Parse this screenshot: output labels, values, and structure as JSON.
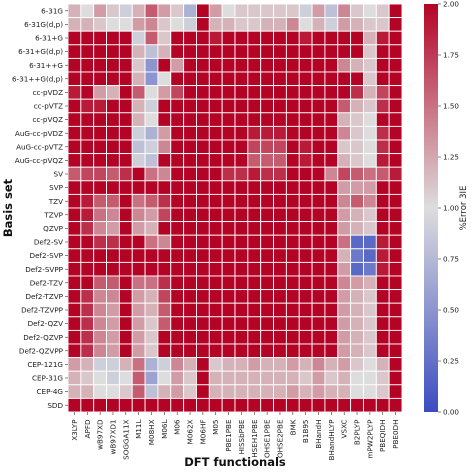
{
  "chart_data": {
    "type": "heatmap",
    "xlabel": "DFT functionals",
    "ylabel": "Basis set",
    "colorbar_label": "%Error 3IE",
    "colorbar_range": [
      0.0,
      2.0
    ],
    "colorbar_ticks": [
      "0.00",
      "0.25",
      "0.50",
      "0.75",
      "1.00",
      "1.25",
      "1.50",
      "1.75",
      "2.00"
    ],
    "colormap": {
      "low": "#3b4cc0",
      "mid": "#dddddd",
      "high": "#b40426"
    },
    "x_categories": [
      "X3LYP",
      "APFD",
      "wB97XD",
      "wB97XD1",
      "SOGGA11X",
      "M11L",
      "M08HX",
      "M06L",
      "M06",
      "M062X",
      "M06HF",
      "M05",
      "PBE1PBE",
      "HISSbPBE",
      "HSEH1PBE",
      "OHSE1PBE",
      "OHSE2PBE",
      "BMK",
      "B1B95",
      "BHandH",
      "BHandHLYP",
      "VSXC",
      "B2PLYP",
      "mPW2PLYP",
      "PBEQIDH",
      "PBE0DH"
    ],
    "y_categories": [
      "6-31G",
      "6-31G(d,p)",
      "6-31+G",
      "6-31+G(d,p)",
      "6-31++G",
      "6-31++G(d,p)",
      "cc-pVDZ",
      "cc-pVTZ",
      "cc-pVQZ",
      "AuG-cc-pVDZ",
      "AuG-cc-pVTZ",
      "AuG-cc-pVQZ",
      "SV",
      "SVP",
      "TZV",
      "TZVP",
      "QZVP",
      "Def2-SV",
      "Def2-SVP",
      "Def2-SVPP",
      "Def2-TZV",
      "Def2-TZVP",
      "Def2-TZVPP",
      "Def2-QZV",
      "Def2-QZVP",
      "Def2-QZVPP",
      "CEP-121G",
      "CEP-31G",
      "CEP-4G",
      "SDD"
    ],
    "values": [
      [
        1.2,
        1.0,
        1.3,
        1.1,
        0.9,
        1.2,
        1.6,
        1.3,
        1.1,
        0.7,
        2.0,
        1.3,
        1.0,
        1.1,
        1.1,
        1.1,
        1.1,
        1.1,
        0.9,
        1.3,
        0.8,
        1.4,
        1.1,
        1.0,
        1.1,
        2.0
      ],
      [
        1.2,
        1.2,
        1.1,
        1.0,
        1.0,
        1.3,
        1.4,
        1.1,
        1.0,
        0.9,
        2.0,
        1.2,
        1.2,
        1.1,
        1.1,
        1.2,
        1.2,
        1.4,
        1.0,
        1.2,
        0.9,
        1.3,
        1.2,
        1.1,
        1.1,
        2.0
      ],
      [
        2.0,
        2.0,
        2.0,
        2.0,
        2.0,
        0.9,
        1.6,
        1.1,
        2.0,
        2.0,
        2.0,
        1.9,
        2.0,
        2.0,
        2.0,
        2.0,
        2.0,
        2.0,
        1.9,
        2.0,
        2.0,
        2.0,
        2.0,
        1.2,
        1.9,
        2.0
      ],
      [
        2.0,
        2.0,
        2.0,
        2.0,
        2.0,
        1.2,
        0.8,
        1.2,
        2.0,
        2.0,
        2.0,
        2.0,
        2.0,
        2.0,
        2.0,
        2.0,
        2.0,
        2.0,
        2.0,
        2.0,
        2.0,
        2.0,
        2.0,
        1.1,
        2.0,
        2.0
      ],
      [
        2.0,
        2.0,
        2.0,
        2.0,
        2.0,
        1.1,
        0.5,
        2.0,
        1.3,
        2.0,
        2.0,
        2.0,
        2.0,
        2.0,
        2.0,
        2.0,
        2.0,
        2.0,
        2.0,
        2.0,
        2.0,
        1.4,
        1.2,
        1.1,
        2.0,
        2.0
      ],
      [
        2.0,
        2.0,
        2.0,
        2.0,
        2.0,
        1.2,
        0.5,
        1.0,
        2.0,
        2.0,
        2.0,
        2.0,
        2.0,
        2.0,
        2.0,
        2.0,
        2.0,
        2.0,
        2.0,
        2.0,
        2.0,
        2.0,
        2.0,
        1.1,
        2.0,
        2.0
      ],
      [
        1.9,
        2.0,
        1.3,
        1.2,
        2.0,
        1.6,
        1.0,
        1.3,
        1.7,
        2.0,
        2.0,
        2.0,
        2.0,
        2.0,
        2.0,
        2.0,
        2.0,
        2.0,
        2.0,
        2.0,
        2.0,
        2.0,
        1.8,
        1.2,
        1.7,
        2.0
      ],
      [
        2.0,
        1.9,
        1.9,
        2.0,
        2.0,
        1.2,
        0.9,
        2.0,
        2.0,
        2.0,
        2.0,
        2.0,
        2.0,
        2.0,
        2.0,
        2.0,
        2.0,
        2.0,
        2.0,
        2.0,
        2.0,
        1.6,
        1.2,
        1.1,
        1.8,
        2.0
      ],
      [
        2.0,
        2.0,
        2.0,
        2.0,
        2.0,
        1.2,
        1.0,
        2.0,
        2.0,
        2.0,
        2.0,
        2.0,
        2.0,
        2.0,
        2.0,
        2.0,
        2.0,
        2.0,
        2.0,
        2.0,
        2.0,
        1.2,
        1.1,
        1.0,
        2.0,
        2.0
      ],
      [
        2.0,
        2.0,
        2.0,
        2.0,
        2.0,
        0.9,
        0.7,
        1.3,
        2.0,
        2.0,
        2.0,
        2.0,
        2.0,
        2.0,
        1.9,
        1.9,
        1.9,
        2.0,
        2.0,
        2.0,
        2.0,
        1.4,
        1.1,
        1.0,
        1.8,
        2.0
      ],
      [
        2.0,
        2.0,
        2.0,
        2.0,
        2.0,
        0.8,
        0.9,
        1.4,
        2.0,
        2.0,
        2.0,
        2.0,
        2.0,
        2.0,
        1.7,
        1.7,
        1.7,
        2.0,
        1.9,
        2.0,
        2.0,
        1.1,
        1.1,
        1.0,
        1.8,
        2.0
      ],
      [
        2.0,
        2.0,
        2.0,
        2.0,
        2.0,
        0.9,
        0.8,
        2.0,
        2.0,
        2.0,
        2.0,
        2.0,
        2.0,
        2.0,
        1.6,
        1.6,
        1.6,
        2.0,
        1.9,
        2.0,
        2.0,
        1.2,
        1.1,
        1.0,
        1.9,
        2.0
      ],
      [
        1.6,
        1.7,
        1.7,
        1.6,
        1.8,
        2.0,
        1.5,
        1.4,
        2.0,
        2.0,
        2.0,
        2.0,
        1.8,
        1.8,
        1.9,
        1.8,
        1.8,
        2.0,
        2.0,
        2.0,
        1.4,
        1.7,
        1.6,
        1.5,
        1.6,
        1.9
      ],
      [
        2.0,
        2.0,
        2.0,
        2.0,
        2.0,
        2.0,
        2.0,
        2.0,
        2.0,
        2.0,
        2.0,
        2.0,
        2.0,
        2.0,
        2.0,
        2.0,
        2.0,
        2.0,
        2.0,
        2.0,
        2.0,
        1.3,
        1.3,
        1.3,
        2.0,
        2.0
      ],
      [
        2.0,
        1.9,
        1.6,
        1.6,
        2.0,
        1.5,
        1.6,
        1.8,
        2.0,
        2.0,
        2.0,
        2.0,
        2.0,
        2.0,
        2.0,
        2.0,
        2.0,
        2.0,
        2.0,
        2.0,
        2.0,
        1.4,
        1.6,
        1.4,
        2.0,
        2.0
      ],
      [
        2.0,
        1.9,
        1.5,
        1.4,
        2.0,
        1.4,
        1.3,
        1.7,
        2.0,
        2.0,
        2.0,
        2.0,
        2.0,
        2.0,
        2.0,
        2.0,
        2.0,
        2.0,
        2.0,
        2.0,
        2.0,
        1.3,
        1.2,
        1.1,
        2.0,
        2.0
      ],
      [
        2.0,
        1.8,
        1.4,
        1.3,
        2.0,
        1.3,
        1.2,
        2.0,
        2.0,
        2.0,
        2.0,
        2.0,
        2.0,
        2.0,
        2.0,
        2.0,
        2.0,
        2.0,
        2.0,
        2.0,
        2.0,
        1.3,
        1.2,
        1.1,
        2.0,
        2.0
      ],
      [
        2.0,
        2.0,
        1.8,
        1.8,
        2.0,
        2.0,
        1.5,
        1.4,
        2.0,
        2.0,
        2.0,
        2.0,
        2.0,
        2.0,
        2.0,
        2.0,
        2.0,
        2.0,
        2.0,
        2.0,
        2.0,
        1.5,
        0.2,
        0.2,
        1.9,
        2.0
      ],
      [
        2.0,
        2.0,
        2.0,
        2.0,
        2.0,
        2.0,
        2.0,
        2.0,
        2.0,
        2.0,
        2.0,
        2.0,
        2.0,
        2.0,
        2.0,
        2.0,
        2.0,
        2.0,
        2.0,
        2.0,
        2.0,
        1.2,
        0.3,
        0.2,
        1.9,
        2.0
      ],
      [
        2.0,
        2.0,
        2.0,
        2.0,
        2.0,
        2.0,
        2.0,
        2.0,
        2.0,
        2.0,
        2.0,
        2.0,
        2.0,
        2.0,
        2.0,
        2.0,
        2.0,
        2.0,
        2.0,
        2.0,
        2.0,
        1.3,
        0.2,
        0.3,
        1.9,
        2.0
      ],
      [
        2.0,
        2.0,
        1.6,
        1.6,
        2.0,
        1.5,
        1.5,
        1.8,
        2.0,
        2.0,
        2.0,
        2.0,
        2.0,
        2.0,
        2.0,
        2.0,
        2.0,
        2.0,
        2.0,
        2.0,
        2.0,
        1.4,
        1.3,
        1.2,
        2.0,
        2.0
      ],
      [
        2.0,
        1.8,
        1.4,
        1.4,
        2.0,
        1.3,
        1.2,
        1.7,
        2.0,
        2.0,
        2.0,
        2.0,
        2.0,
        2.0,
        2.0,
        2.0,
        2.0,
        2.0,
        2.0,
        2.0,
        2.0,
        1.3,
        1.2,
        1.1,
        2.0,
        2.0
      ],
      [
        2.0,
        1.8,
        1.4,
        1.3,
        2.0,
        1.3,
        1.2,
        1.6,
        2.0,
        2.0,
        2.0,
        2.0,
        2.0,
        2.0,
        2.0,
        2.0,
        2.0,
        2.0,
        2.0,
        2.0,
        2.0,
        1.3,
        1.2,
        1.1,
        2.0,
        2.0
      ],
      [
        2.0,
        1.8,
        1.4,
        1.3,
        2.0,
        1.3,
        1.1,
        1.6,
        2.0,
        2.0,
        2.0,
        2.0,
        2.0,
        2.0,
        2.0,
        2.0,
        2.0,
        2.0,
        2.0,
        2.0,
        2.0,
        1.3,
        1.2,
        1.1,
        2.0,
        2.0
      ],
      [
        2.0,
        1.8,
        1.4,
        1.3,
        2.0,
        1.3,
        1.1,
        2.0,
        2.0,
        2.0,
        2.0,
        2.0,
        2.0,
        2.0,
        2.0,
        2.0,
        2.0,
        2.0,
        2.0,
        2.0,
        2.0,
        1.3,
        1.2,
        1.1,
        2.0,
        2.0
      ],
      [
        2.0,
        1.8,
        1.4,
        1.3,
        2.0,
        1.3,
        1.1,
        2.0,
        2.0,
        2.0,
        2.0,
        2.0,
        2.0,
        2.0,
        2.0,
        2.0,
        2.0,
        2.0,
        2.0,
        2.0,
        2.0,
        1.3,
        1.2,
        1.1,
        2.0,
        2.0
      ],
      [
        1.3,
        1.2,
        0.9,
        0.9,
        1.2,
        1.5,
        0.7,
        0.9,
        1.4,
        1.2,
        2.0,
        1.1,
        1.2,
        1.2,
        1.3,
        1.2,
        1.2,
        1.3,
        1.2,
        1.4,
        1.2,
        1.3,
        1.1,
        1.0,
        1.2,
        2.0
      ],
      [
        1.2,
        1.1,
        1.0,
        0.9,
        1.0,
        1.6,
        0.6,
        1.0,
        1.3,
        1.1,
        2.0,
        1.2,
        1.2,
        1.2,
        1.2,
        1.2,
        1.2,
        1.2,
        1.1,
        1.3,
        1.1,
        1.2,
        1.0,
        1.0,
        1.1,
        2.0
      ],
      [
        1.2,
        1.2,
        1.0,
        1.0,
        1.1,
        1.6,
        0.8,
        1.2,
        1.3,
        1.1,
        2.0,
        1.2,
        1.2,
        1.2,
        1.2,
        1.2,
        1.2,
        1.3,
        1.2,
        1.3,
        1.2,
        1.2,
        1.0,
        1.0,
        1.1,
        2.0
      ],
      [
        2.0,
        2.0,
        2.0,
        2.0,
        2.0,
        2.0,
        2.0,
        2.0,
        2.0,
        2.0,
        2.0,
        2.0,
        2.0,
        2.0,
        2.0,
        2.0,
        2.0,
        2.0,
        2.0,
        2.0,
        2.0,
        2.0,
        2.0,
        2.0,
        2.0,
        2.0
      ]
    ]
  }
}
